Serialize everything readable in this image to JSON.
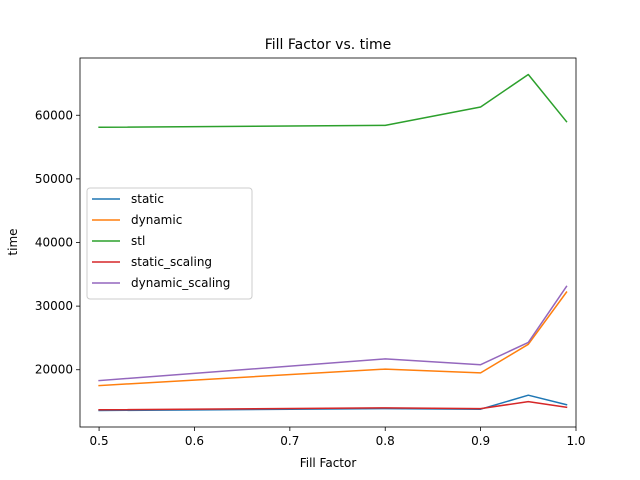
{
  "chart_data": {
    "type": "line",
    "title": "Fill Factor vs. time",
    "xlabel": "Fill Factor",
    "ylabel": "time",
    "x": [
      0.5,
      0.8,
      0.9,
      0.95,
      0.99
    ],
    "xlim": [
      0.48,
      1.0
    ],
    "ylim": [
      11000,
      69000
    ],
    "xticks": [
      0.5,
      0.6,
      0.7,
      0.8,
      0.9,
      1.0
    ],
    "xtick_labels": [
      "0.5",
      "0.6",
      "0.7",
      "0.8",
      "0.9",
      "1.0"
    ],
    "yticks": [
      20000,
      30000,
      40000,
      50000,
      60000
    ],
    "ytick_labels": [
      "20000",
      "30000",
      "40000",
      "50000",
      "60000"
    ],
    "grid": false,
    "legend_position": "center-left",
    "series": [
      {
        "name": "static",
        "color": "#1f77b4",
        "values": [
          13600,
          13900,
          13800,
          16000,
          14500
        ]
      },
      {
        "name": "dynamic",
        "color": "#ff7f0e",
        "values": [
          17500,
          20100,
          19500,
          24000,
          32200
        ]
      },
      {
        "name": "stl",
        "color": "#2ca02c",
        "values": [
          58100,
          58400,
          61300,
          66400,
          59000
        ]
      },
      {
        "name": "static_scaling",
        "color": "#d62728",
        "values": [
          13700,
          14000,
          13900,
          15000,
          14100
        ]
      },
      {
        "name": "dynamic_scaling",
        "color": "#9467bd",
        "values": [
          18300,
          21700,
          20800,
          24300,
          33100
        ]
      }
    ]
  }
}
